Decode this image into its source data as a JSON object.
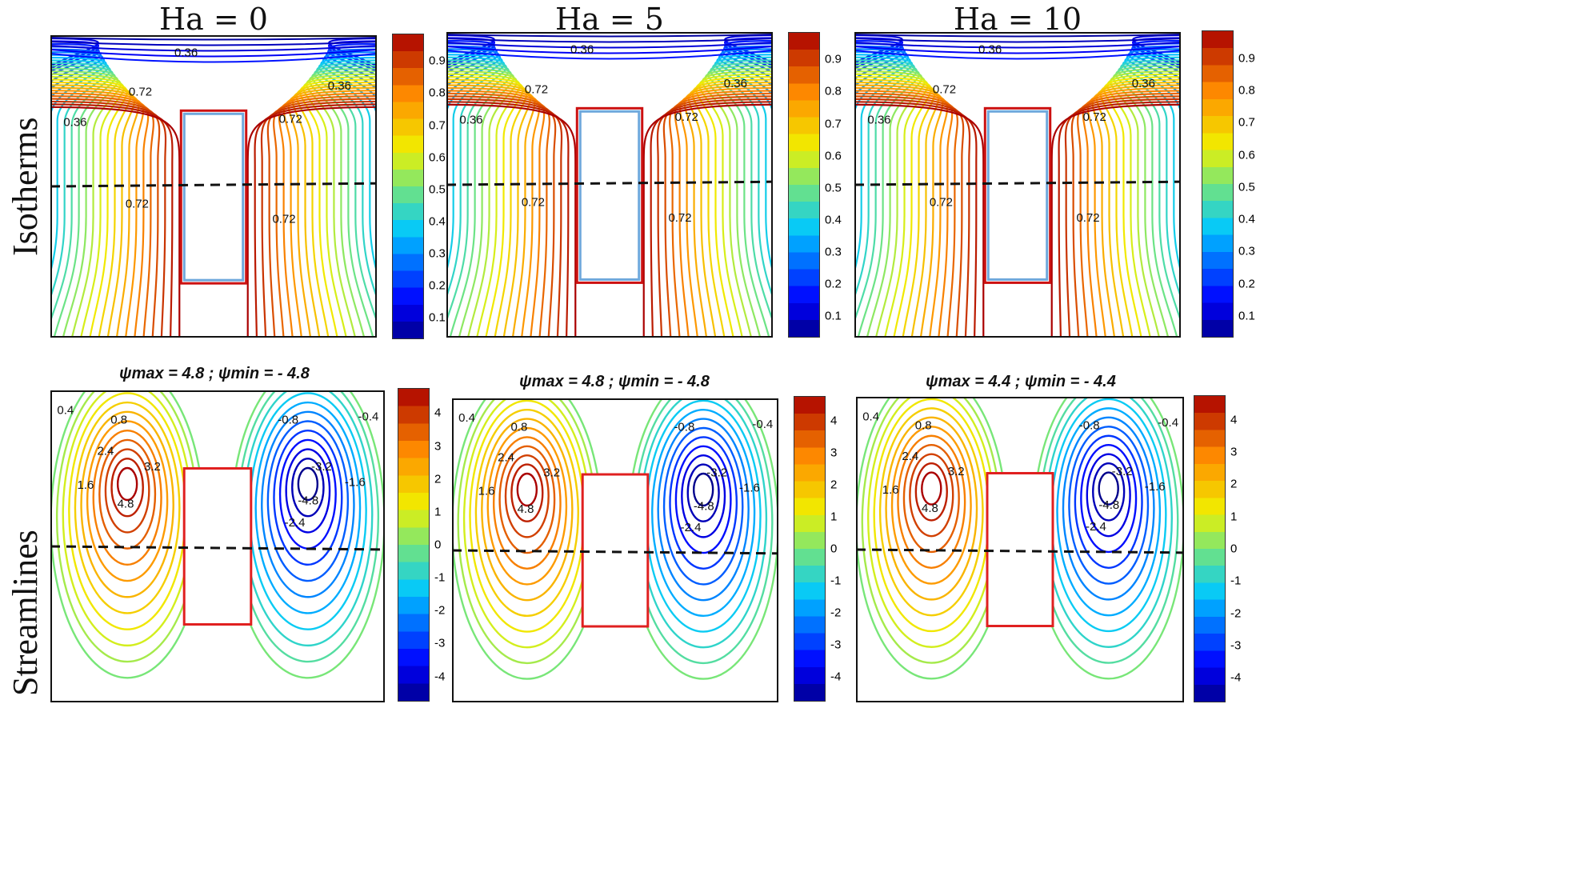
{
  "columns": [
    {
      "title": "Ha = 0",
      "psi_label": "ψmax = 4.8 ; ψmin = - 4.8"
    },
    {
      "title": "Ha = 5",
      "psi_label": "ψmax = 4.8 ; ψmin = - 4.8"
    },
    {
      "title": "Ha = 10",
      "psi_label": "ψmax = 4.4 ; ψmin = - 4.4"
    }
  ],
  "rows": {
    "isotherms": "Isotherms",
    "streamlines": "Streamlines"
  },
  "isotherm_colorbar": {
    "ticks": [
      "0.9",
      "0.8",
      "0.7",
      "0.6",
      "0.5",
      "0.4",
      "0.3",
      "0.2",
      "0.1"
    ]
  },
  "streamline_colorbar": {
    "ticks": [
      "4",
      "3",
      "2",
      "1",
      "0",
      "-1",
      "-2",
      "-3",
      "-4"
    ]
  },
  "isotherm_labels": [
    "0.36",
    "0.72",
    "0.36",
    "0.72",
    "0.72",
    "0.36",
    "0.72"
  ],
  "streamline_labels": [
    "0.8",
    "1.6",
    "2.4",
    "3.2",
    "4.8",
    "0.4",
    "-0.8",
    "-1.6",
    "-2.4",
    "-3.2",
    "-4.8",
    "-0.4"
  ],
  "colors": {
    "hot": "#cc1111",
    "cold": "#1010c0",
    "box_iso": "#6fa8dc",
    "box_str": "#e02020"
  }
}
